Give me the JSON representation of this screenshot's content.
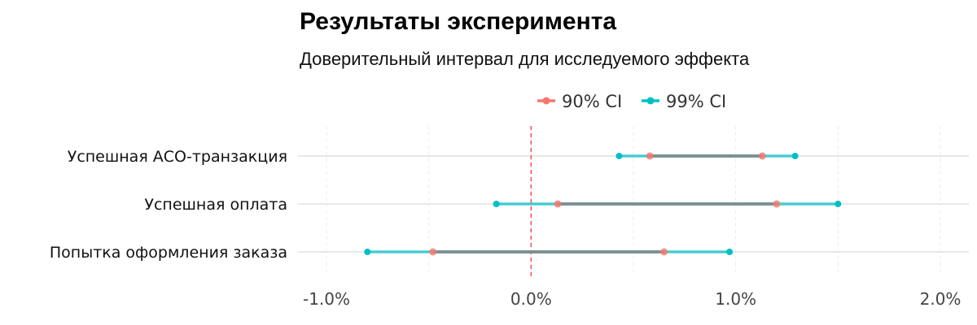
{
  "title": "Результаты эксперимента",
  "subtitle": "Доверительный интервал для исследуемого эффекта",
  "chart_data": {
    "type": "dumbbell",
    "categories": [
      "Успешная АСО-транзакция",
      "Успешная оплата",
      "Попытка оформления заказа"
    ],
    "series": [
      {
        "name": "90% CI",
        "color": "#F8766D",
        "intervals": [
          [
            0.58,
            1.13
          ],
          [
            0.13,
            1.2
          ],
          [
            -0.48,
            0.65
          ]
        ]
      },
      {
        "name": "99% CI",
        "color": "#00BFC4",
        "intervals": [
          [
            0.43,
            1.29
          ],
          [
            -0.17,
            1.5
          ],
          [
            -0.8,
            0.97
          ]
        ]
      }
    ],
    "connector_color": "#7F8C8D",
    "reference_line": {
      "x": 0,
      "color": "#FF4B4B",
      "style": "dashed"
    },
    "xlim": [
      -1.0,
      2.0
    ],
    "xticks": [
      -1.0,
      0.0,
      1.0,
      2.0
    ],
    "xtick_labels": [
      "-1.0%",
      "0.0%",
      "1.0%",
      "2.0%"
    ],
    "x_unit": "%",
    "legend_position": "top",
    "grid": true
  }
}
